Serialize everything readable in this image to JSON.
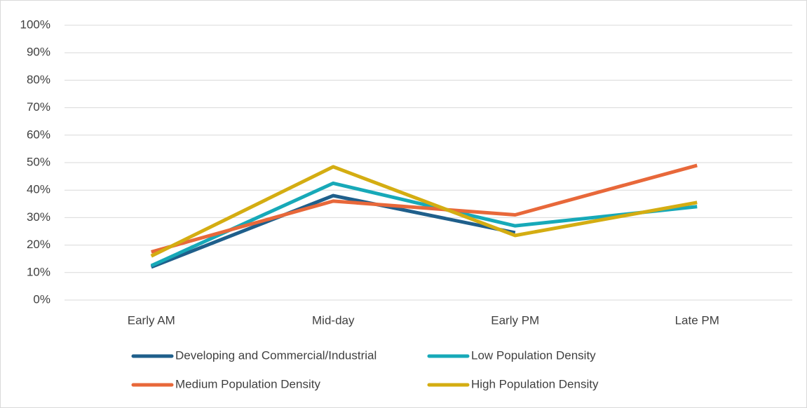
{
  "chart_data": {
    "type": "line",
    "categories": [
      "Early AM",
      "Mid-day",
      "Early PM",
      "Late PM"
    ],
    "series": [
      {
        "name": "Developing and Commercial/Industrial",
        "color": "#1f5f8b",
        "values": [
          12,
          38,
          24.5,
          null
        ]
      },
      {
        "name": "Low Population Density",
        "color": "#17a9b8",
        "values": [
          12.5,
          42.5,
          27,
          34
        ]
      },
      {
        "name": "Medium Population Density",
        "color": "#e8683a",
        "values": [
          17.5,
          36,
          31,
          49
        ]
      },
      {
        "name": "High Population Density",
        "color": "#d4ad12",
        "values": [
          16,
          48.5,
          23.5,
          35.5
        ]
      }
    ],
    "ylim": [
      0,
      100
    ],
    "yticks": [
      {
        "value": 0,
        "label": "0%"
      },
      {
        "value": 10,
        "label": "10%"
      },
      {
        "value": 20,
        "label": "20%"
      },
      {
        "value": 30,
        "label": "30%"
      },
      {
        "value": 40,
        "label": "40%"
      },
      {
        "value": 50,
        "label": "50%"
      },
      {
        "value": 60,
        "label": "60%"
      },
      {
        "value": 70,
        "label": "70%"
      },
      {
        "value": 80,
        "label": "80%"
      },
      {
        "value": 90,
        "label": "90%"
      },
      {
        "value": 100,
        "label": "100%"
      }
    ],
    "grid": true
  }
}
